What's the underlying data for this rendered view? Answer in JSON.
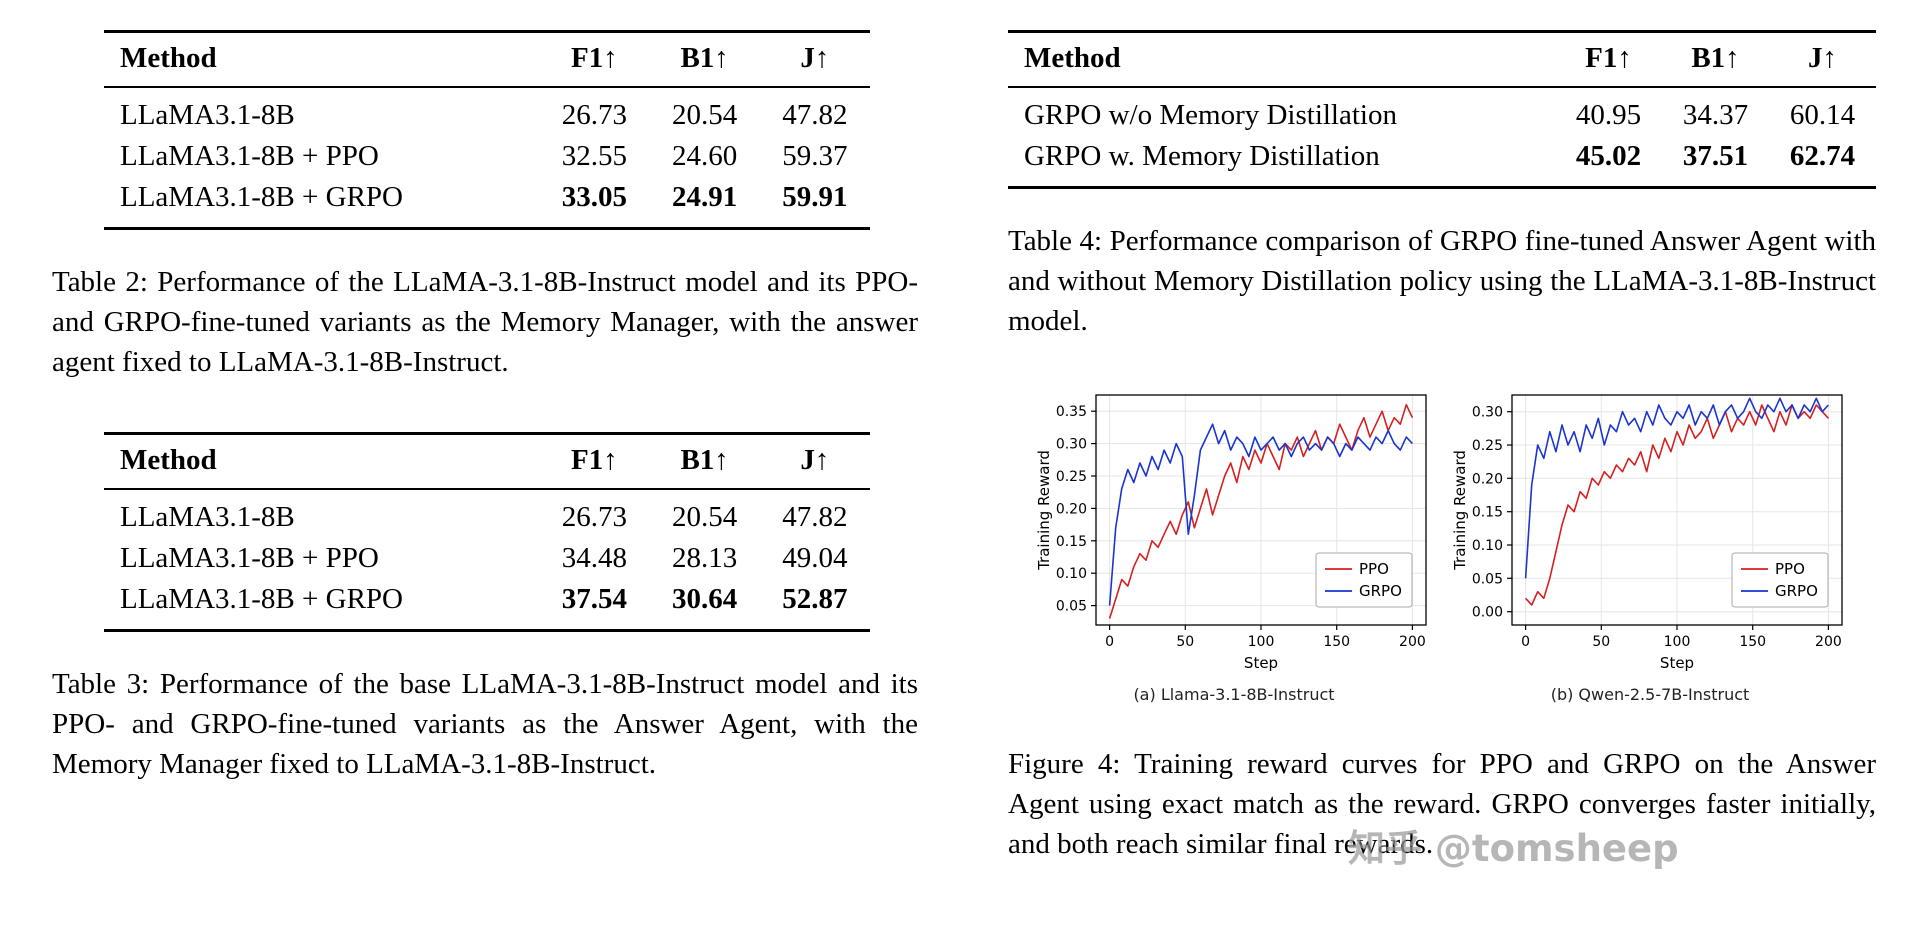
{
  "tables": {
    "table2": {
      "headers": [
        "Method",
        "F1↑",
        "B1↑",
        "J↑"
      ],
      "rows": [
        {
          "cells": [
            "LLaMA3.1-8B",
            "26.73",
            "20.54",
            "47.82"
          ]
        },
        {
          "cells": [
            "LLaMA3.1-8B + PPO",
            "32.55",
            "24.60",
            "59.37"
          ]
        },
        {
          "cells": [
            "LLaMA3.1-8B + GRPO",
            "33.05",
            "24.91",
            "59.91"
          ],
          "bold_values": true
        }
      ],
      "caption": "Table 2: Performance of the LLaMA-3.1-8B-Instruct model and its PPO- and GRPO-fine-tuned variants as the Memory Manager, with the answer agent fixed to LLaMA-3.1-8B-Instruct."
    },
    "table3": {
      "headers": [
        "Method",
        "F1↑",
        "B1↑",
        "J↑"
      ],
      "rows": [
        {
          "cells": [
            "LLaMA3.1-8B",
            "26.73",
            "20.54",
            "47.82"
          ]
        },
        {
          "cells": [
            "LLaMA3.1-8B + PPO",
            "34.48",
            "28.13",
            "49.04"
          ]
        },
        {
          "cells": [
            "LLaMA3.1-8B + GRPO",
            "37.54",
            "30.64",
            "52.87"
          ],
          "bold_values": true
        }
      ],
      "caption": "Table 3: Performance of the base LLaMA-3.1-8B-Instruct model and its PPO- and GRPO-fine-tuned variants as the Answer Agent, with the Memory Manager fixed to LLaMA-3.1-8B-Instruct."
    },
    "table4": {
      "headers": [
        "Method",
        "F1↑",
        "B1↑",
        "J↑"
      ],
      "rows": [
        {
          "cells": [
            "GRPO w/o Memory Distillation",
            "40.95",
            "34.37",
            "60.14"
          ]
        },
        {
          "cells": [
            "GRPO w. Memory Distillation",
            "45.02",
            "37.51",
            "62.74"
          ],
          "bold_values": true
        }
      ],
      "caption": "Table 4: Performance comparison of GRPO fine-tuned Answer Agent with and without Memory Distillation policy using the LLaMA-3.1-8B-Instruct model."
    }
  },
  "figure": {
    "caption": "Figure 4: Training reward curves for PPO and GRPO on the Answer Agent using exact match as the reward. GRPO converges faster initially, and both reach similar final rewards.",
    "subcaptions": [
      "(a) Llama-3.1-8B-Instruct",
      "(b) Qwen-2.5-7B-Instruct"
    ]
  },
  "watermark": "知乎 @tomsheep",
  "chart_data": [
    {
      "type": "line",
      "title": "(a) Llama-3.1-8B-Instruct",
      "xlabel": "Step",
      "ylabel": "Training Reward",
      "xlim": [
        0,
        200
      ],
      "ylim": [
        0.02,
        0.375
      ],
      "xticks": [
        0,
        50,
        100,
        150,
        200
      ],
      "yticks": [
        0.05,
        0.1,
        0.15,
        0.2,
        0.25,
        0.3,
        0.35
      ],
      "grid": true,
      "legend_position": "lower right",
      "x_step": 4,
      "series": [
        {
          "name": "PPO",
          "color": "#d62020",
          "values": [
            0.03,
            0.06,
            0.09,
            0.08,
            0.11,
            0.13,
            0.12,
            0.15,
            0.14,
            0.16,
            0.18,
            0.16,
            0.19,
            0.21,
            0.17,
            0.2,
            0.23,
            0.19,
            0.22,
            0.25,
            0.27,
            0.24,
            0.28,
            0.26,
            0.29,
            0.27,
            0.3,
            0.28,
            0.26,
            0.3,
            0.29,
            0.31,
            0.28,
            0.3,
            0.32,
            0.29,
            0.31,
            0.3,
            0.33,
            0.31,
            0.29,
            0.32,
            0.34,
            0.31,
            0.33,
            0.35,
            0.32,
            0.34,
            0.33,
            0.36,
            0.34
          ]
        },
        {
          "name": "GRPO",
          "color": "#1a35cf",
          "values": [
            0.05,
            0.17,
            0.23,
            0.26,
            0.24,
            0.27,
            0.25,
            0.28,
            0.26,
            0.29,
            0.27,
            0.3,
            0.28,
            0.16,
            0.22,
            0.29,
            0.31,
            0.33,
            0.3,
            0.32,
            0.29,
            0.31,
            0.3,
            0.28,
            0.31,
            0.29,
            0.3,
            0.31,
            0.29,
            0.3,
            0.28,
            0.3,
            0.31,
            0.29,
            0.3,
            0.29,
            0.31,
            0.3,
            0.28,
            0.3,
            0.29,
            0.31,
            0.3,
            0.29,
            0.31,
            0.3,
            0.32,
            0.3,
            0.29,
            0.31,
            0.3
          ]
        }
      ]
    },
    {
      "type": "line",
      "title": "(b) Qwen-2.5-7B-Instruct",
      "xlabel": "Step",
      "ylabel": "Training Reward",
      "xlim": [
        0,
        200
      ],
      "ylim": [
        -0.02,
        0.325
      ],
      "xticks": [
        0,
        50,
        100,
        150,
        200
      ],
      "yticks": [
        0.0,
        0.05,
        0.1,
        0.15,
        0.2,
        0.25,
        0.3
      ],
      "grid": true,
      "legend_position": "lower right",
      "x_step": 4,
      "series": [
        {
          "name": "PPO",
          "color": "#d62020",
          "values": [
            0.02,
            0.01,
            0.03,
            0.02,
            0.05,
            0.09,
            0.13,
            0.16,
            0.15,
            0.18,
            0.17,
            0.2,
            0.19,
            0.21,
            0.2,
            0.22,
            0.21,
            0.23,
            0.22,
            0.24,
            0.21,
            0.25,
            0.23,
            0.26,
            0.24,
            0.27,
            0.25,
            0.28,
            0.26,
            0.27,
            0.29,
            0.26,
            0.28,
            0.3,
            0.27,
            0.29,
            0.28,
            0.3,
            0.28,
            0.31,
            0.29,
            0.27,
            0.3,
            0.28,
            0.31,
            0.29,
            0.3,
            0.29,
            0.31,
            0.3,
            0.29
          ]
        },
        {
          "name": "GRPO",
          "color": "#1a35cf",
          "values": [
            0.05,
            0.19,
            0.25,
            0.23,
            0.27,
            0.24,
            0.28,
            0.25,
            0.27,
            0.24,
            0.28,
            0.26,
            0.29,
            0.25,
            0.28,
            0.27,
            0.3,
            0.28,
            0.29,
            0.27,
            0.3,
            0.28,
            0.31,
            0.29,
            0.28,
            0.3,
            0.29,
            0.31,
            0.28,
            0.3,
            0.29,
            0.31,
            0.28,
            0.3,
            0.31,
            0.29,
            0.3,
            0.32,
            0.3,
            0.29,
            0.31,
            0.3,
            0.32,
            0.3,
            0.31,
            0.29,
            0.31,
            0.3,
            0.32,
            0.3,
            0.31
          ]
        }
      ]
    }
  ]
}
